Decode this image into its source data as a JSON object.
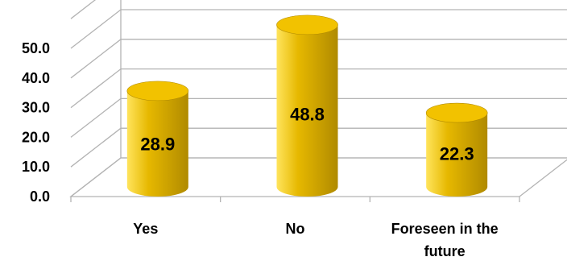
{
  "chart_data": {
    "type": "bar",
    "style": "3d-cylinder",
    "categories": [
      "Yes",
      "No",
      "Foreseen in the future"
    ],
    "values": [
      28.9,
      48.8,
      22.3
    ],
    "data_labels": [
      "28.9",
      "48.8",
      "22.3"
    ],
    "y_ticks": [
      "0.0",
      "10.0",
      "20.0",
      "30.0",
      "40.0",
      "50.0"
    ],
    "ylim": [
      0,
      50
    ],
    "grid": true,
    "legend": "none",
    "bar_color": "#e6b800",
    "bar_highlight": "#ffe45c",
    "bar_shadow": "#b08a00",
    "bar_top_color": "#f2c200",
    "grid_color": "#b3b3b3"
  }
}
